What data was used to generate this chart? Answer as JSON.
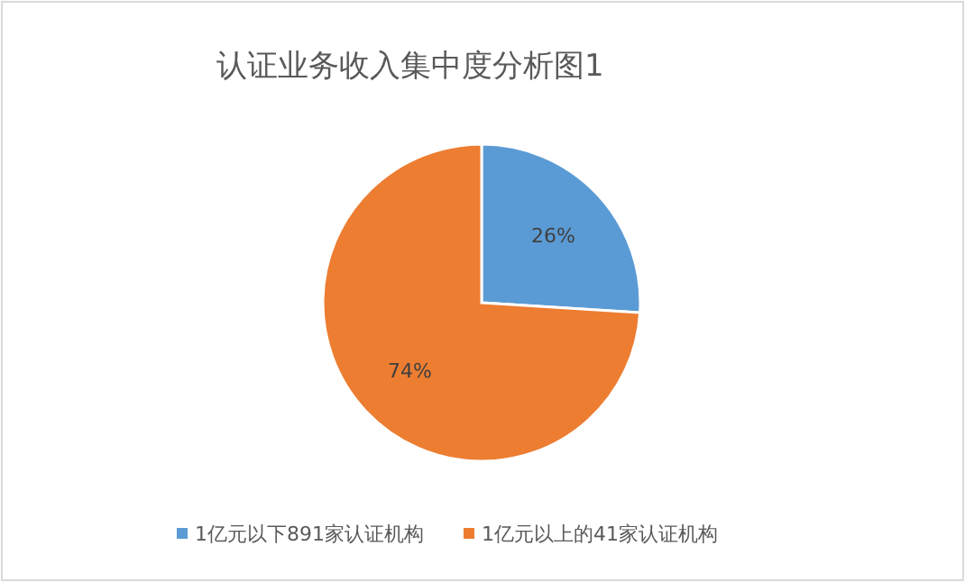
{
  "chart_data": {
    "type": "pie",
    "title": "认证业务收入集中度分析图1",
    "categories": [
      "1亿元以下891家认证机构",
      "1亿元以上的41家认证机构"
    ],
    "values": [
      26,
      74
    ],
    "colors": [
      "#5b9bd5",
      "#ed7d31"
    ],
    "value_labels": [
      "26%",
      "74%"
    ],
    "legend": "bottom"
  }
}
